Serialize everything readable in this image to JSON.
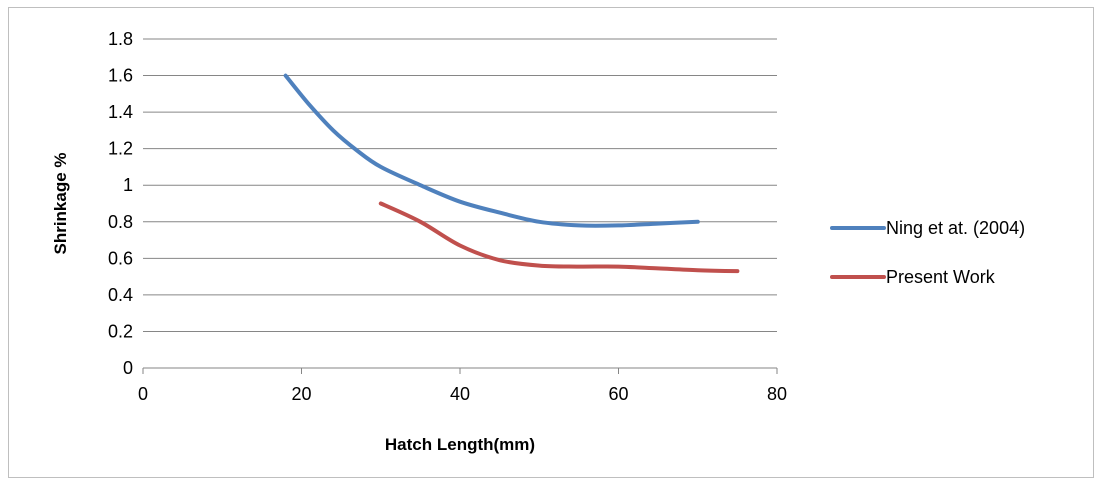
{
  "chart_data": {
    "type": "line",
    "title": "",
    "xlabel": "Hatch Length(mm)",
    "ylabel": "Shrinkage %",
    "xlim": [
      0,
      80
    ],
    "ylim": [
      0,
      1.8
    ],
    "xticks": [
      "0",
      "20",
      "40",
      "60",
      "80"
    ],
    "yticks": [
      "0",
      "0.2",
      "0.4",
      "0.6",
      "0.8",
      "1",
      "1.2",
      "1.4",
      "1.6",
      "1.8"
    ],
    "grid": "horizontal",
    "legend_position": "right",
    "series": [
      {
        "name": "Ning et at. (2004)",
        "color": "#4f81bd",
        "x": [
          18,
          21,
          24,
          27,
          30,
          35,
          40,
          45,
          50,
          55,
          60,
          65,
          70
        ],
        "y": [
          1.6,
          1.44,
          1.3,
          1.19,
          1.1,
          1.0,
          0.91,
          0.85,
          0.8,
          0.78,
          0.78,
          0.79,
          0.8
        ]
      },
      {
        "name": "Present Work",
        "color": "#c0504d",
        "x": [
          30,
          35,
          40,
          45,
          50,
          55,
          60,
          65,
          70,
          75
        ],
        "y": [
          0.9,
          0.8,
          0.67,
          0.59,
          0.56,
          0.555,
          0.555,
          0.545,
          0.535,
          0.53
        ]
      }
    ]
  }
}
